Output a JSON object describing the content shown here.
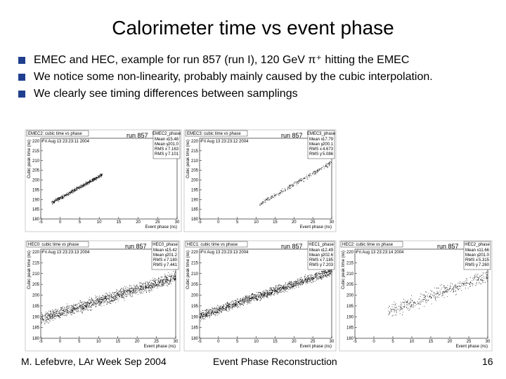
{
  "title": "Calorimeter time vs event phase",
  "bullets": [
    "EMEC and HEC, example for run 857 (run I), 120 GeV π⁺ hitting the EMEC",
    "We notice some non-linearity, probably mainly caused by the cubic interpolation.",
    "We clearly see timing differences between samplings"
  ],
  "panels": [
    {
      "title": "EMEC2: cubic time vs phase",
      "run": "run 857",
      "date": "Fri Aug 13 23:23:11 2004",
      "stats_name": "EMEC2_phase",
      "stats": [
        [
          "Mean x",
          "15.48"
        ],
        [
          "Mean y",
          "201.0"
        ],
        [
          "RMS x",
          "7.163"
        ],
        [
          "RMS y",
          "7.101"
        ]
      ]
    },
    {
      "title": "EMEC3: cubic time vs phase",
      "run": "run 857",
      "date": "Fri Aug 13 23:23:12 2004",
      "stats_name": "EMEC3_phase",
      "stats": [
        [
          "Mean x",
          "17.79"
        ],
        [
          "Mean y",
          "200.1"
        ],
        [
          "RMS x",
          "4.673"
        ],
        [
          "RMS y",
          "5.086"
        ]
      ]
    },
    {
      "title": "HEC0: cubic time vs phase",
      "run": "run 857",
      "date": "Fri Aug 13 23:23:13 2004",
      "stats_name": "HEC0_phase",
      "stats": [
        [
          "Mean x",
          "15.42"
        ],
        [
          "Mean y",
          "201.2"
        ],
        [
          "RMS x",
          "7.180"
        ],
        [
          "RMS y",
          "7.441"
        ]
      ]
    },
    {
      "title": "HEC1: cubic time vs phase",
      "run": "run 857",
      "date": "Fri Aug 13 23:23:13 2004",
      "stats_name": "HEC1_phase",
      "stats": [
        [
          "Mean x",
          "12.49"
        ],
        [
          "Mean y",
          "202.6"
        ],
        [
          "RMS x",
          "7.185"
        ],
        [
          "RMS y",
          "7.203"
        ]
      ]
    },
    {
      "title": "HEC2: cubic time vs phase",
      "run": "run 857",
      "date": "Fri Aug 13 23:23:14 2004",
      "stats_name": "HEC2_phase",
      "stats": [
        [
          "Mean x",
          "11.66"
        ],
        [
          "Mean y",
          "201.0"
        ],
        [
          "RMS x",
          "5.315"
        ],
        [
          "RMS y",
          "7.260"
        ]
      ]
    }
  ],
  "axes": {
    "x_label": "Event phase (ns)",
    "y_label": "Cubic peak time (ns)",
    "xticks": [
      -5,
      0,
      5,
      10,
      15,
      20,
      25,
      30
    ],
    "yticks": [
      180,
      185,
      190,
      195,
      200,
      205,
      210,
      215,
      220
    ]
  },
  "footer": {
    "left": "M. Lefebvre, LAr Week Sep 2004",
    "center": "Event Phase Reconstruction",
    "page": "16"
  }
}
